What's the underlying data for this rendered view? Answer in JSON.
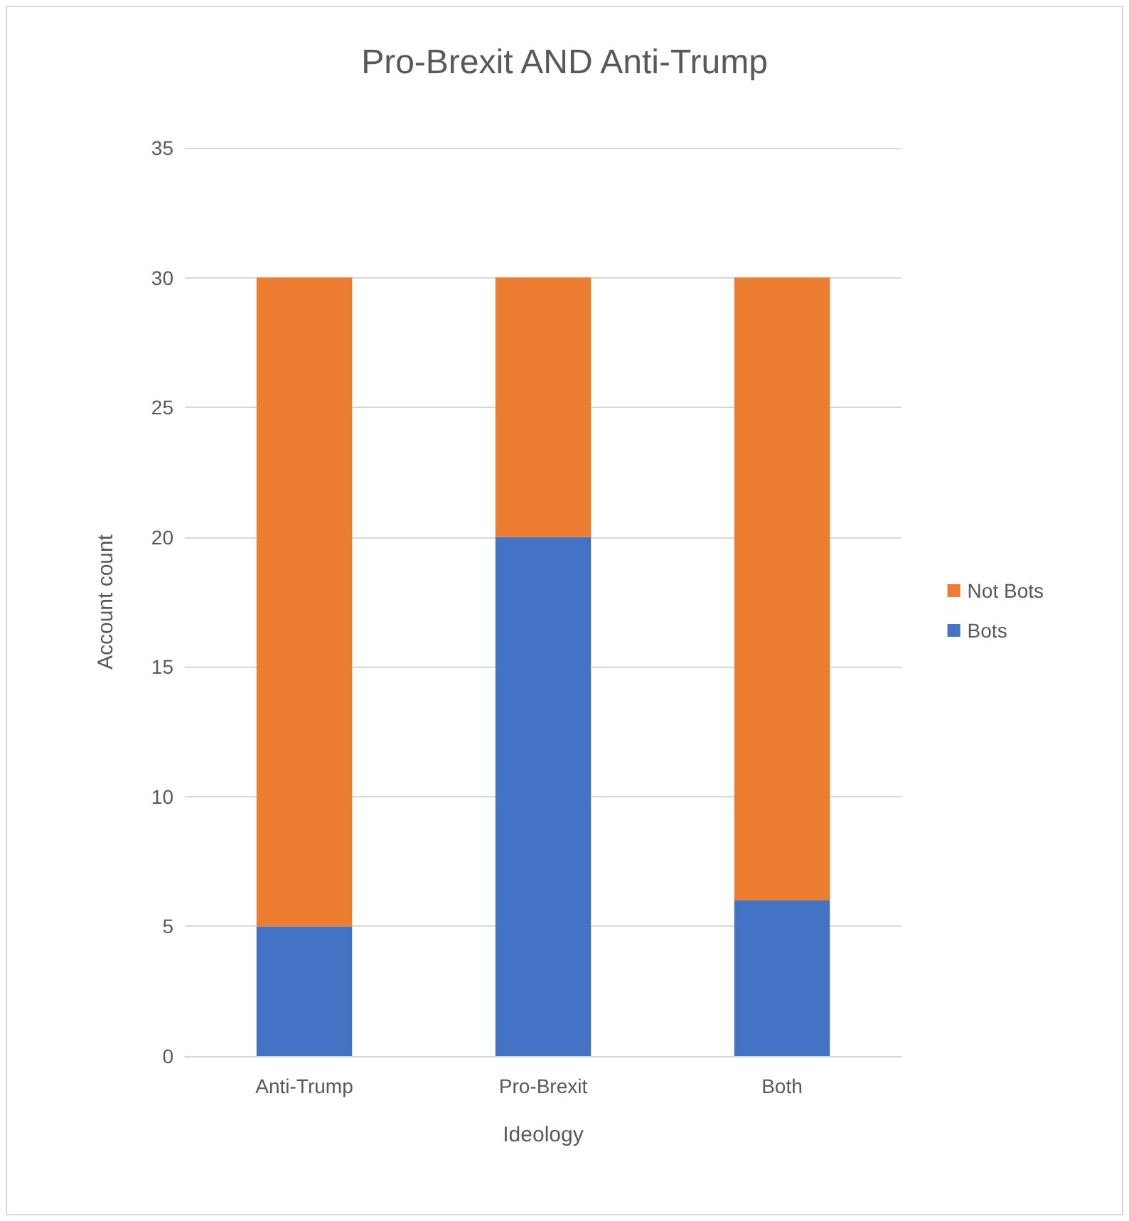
{
  "chart_data": {
    "type": "bar",
    "title": "Pro-Brexit AND Anti-Trump",
    "xlabel": "Ideology",
    "ylabel": "Account count",
    "categories": [
      "Anti-Trump",
      "Pro-Brexit",
      "Both"
    ],
    "series": [
      {
        "name": "Bots",
        "color": "#4472c4",
        "values": [
          5,
          20,
          6
        ]
      },
      {
        "name": "Not Bots",
        "color": "#ed7d31",
        "values": [
          25,
          10,
          24
        ]
      }
    ],
    "stacked": true,
    "ylim": [
      0,
      35
    ],
    "yticks": [
      0,
      5,
      10,
      15,
      20,
      25,
      30,
      35
    ],
    "grid": "y",
    "legend": "right"
  }
}
